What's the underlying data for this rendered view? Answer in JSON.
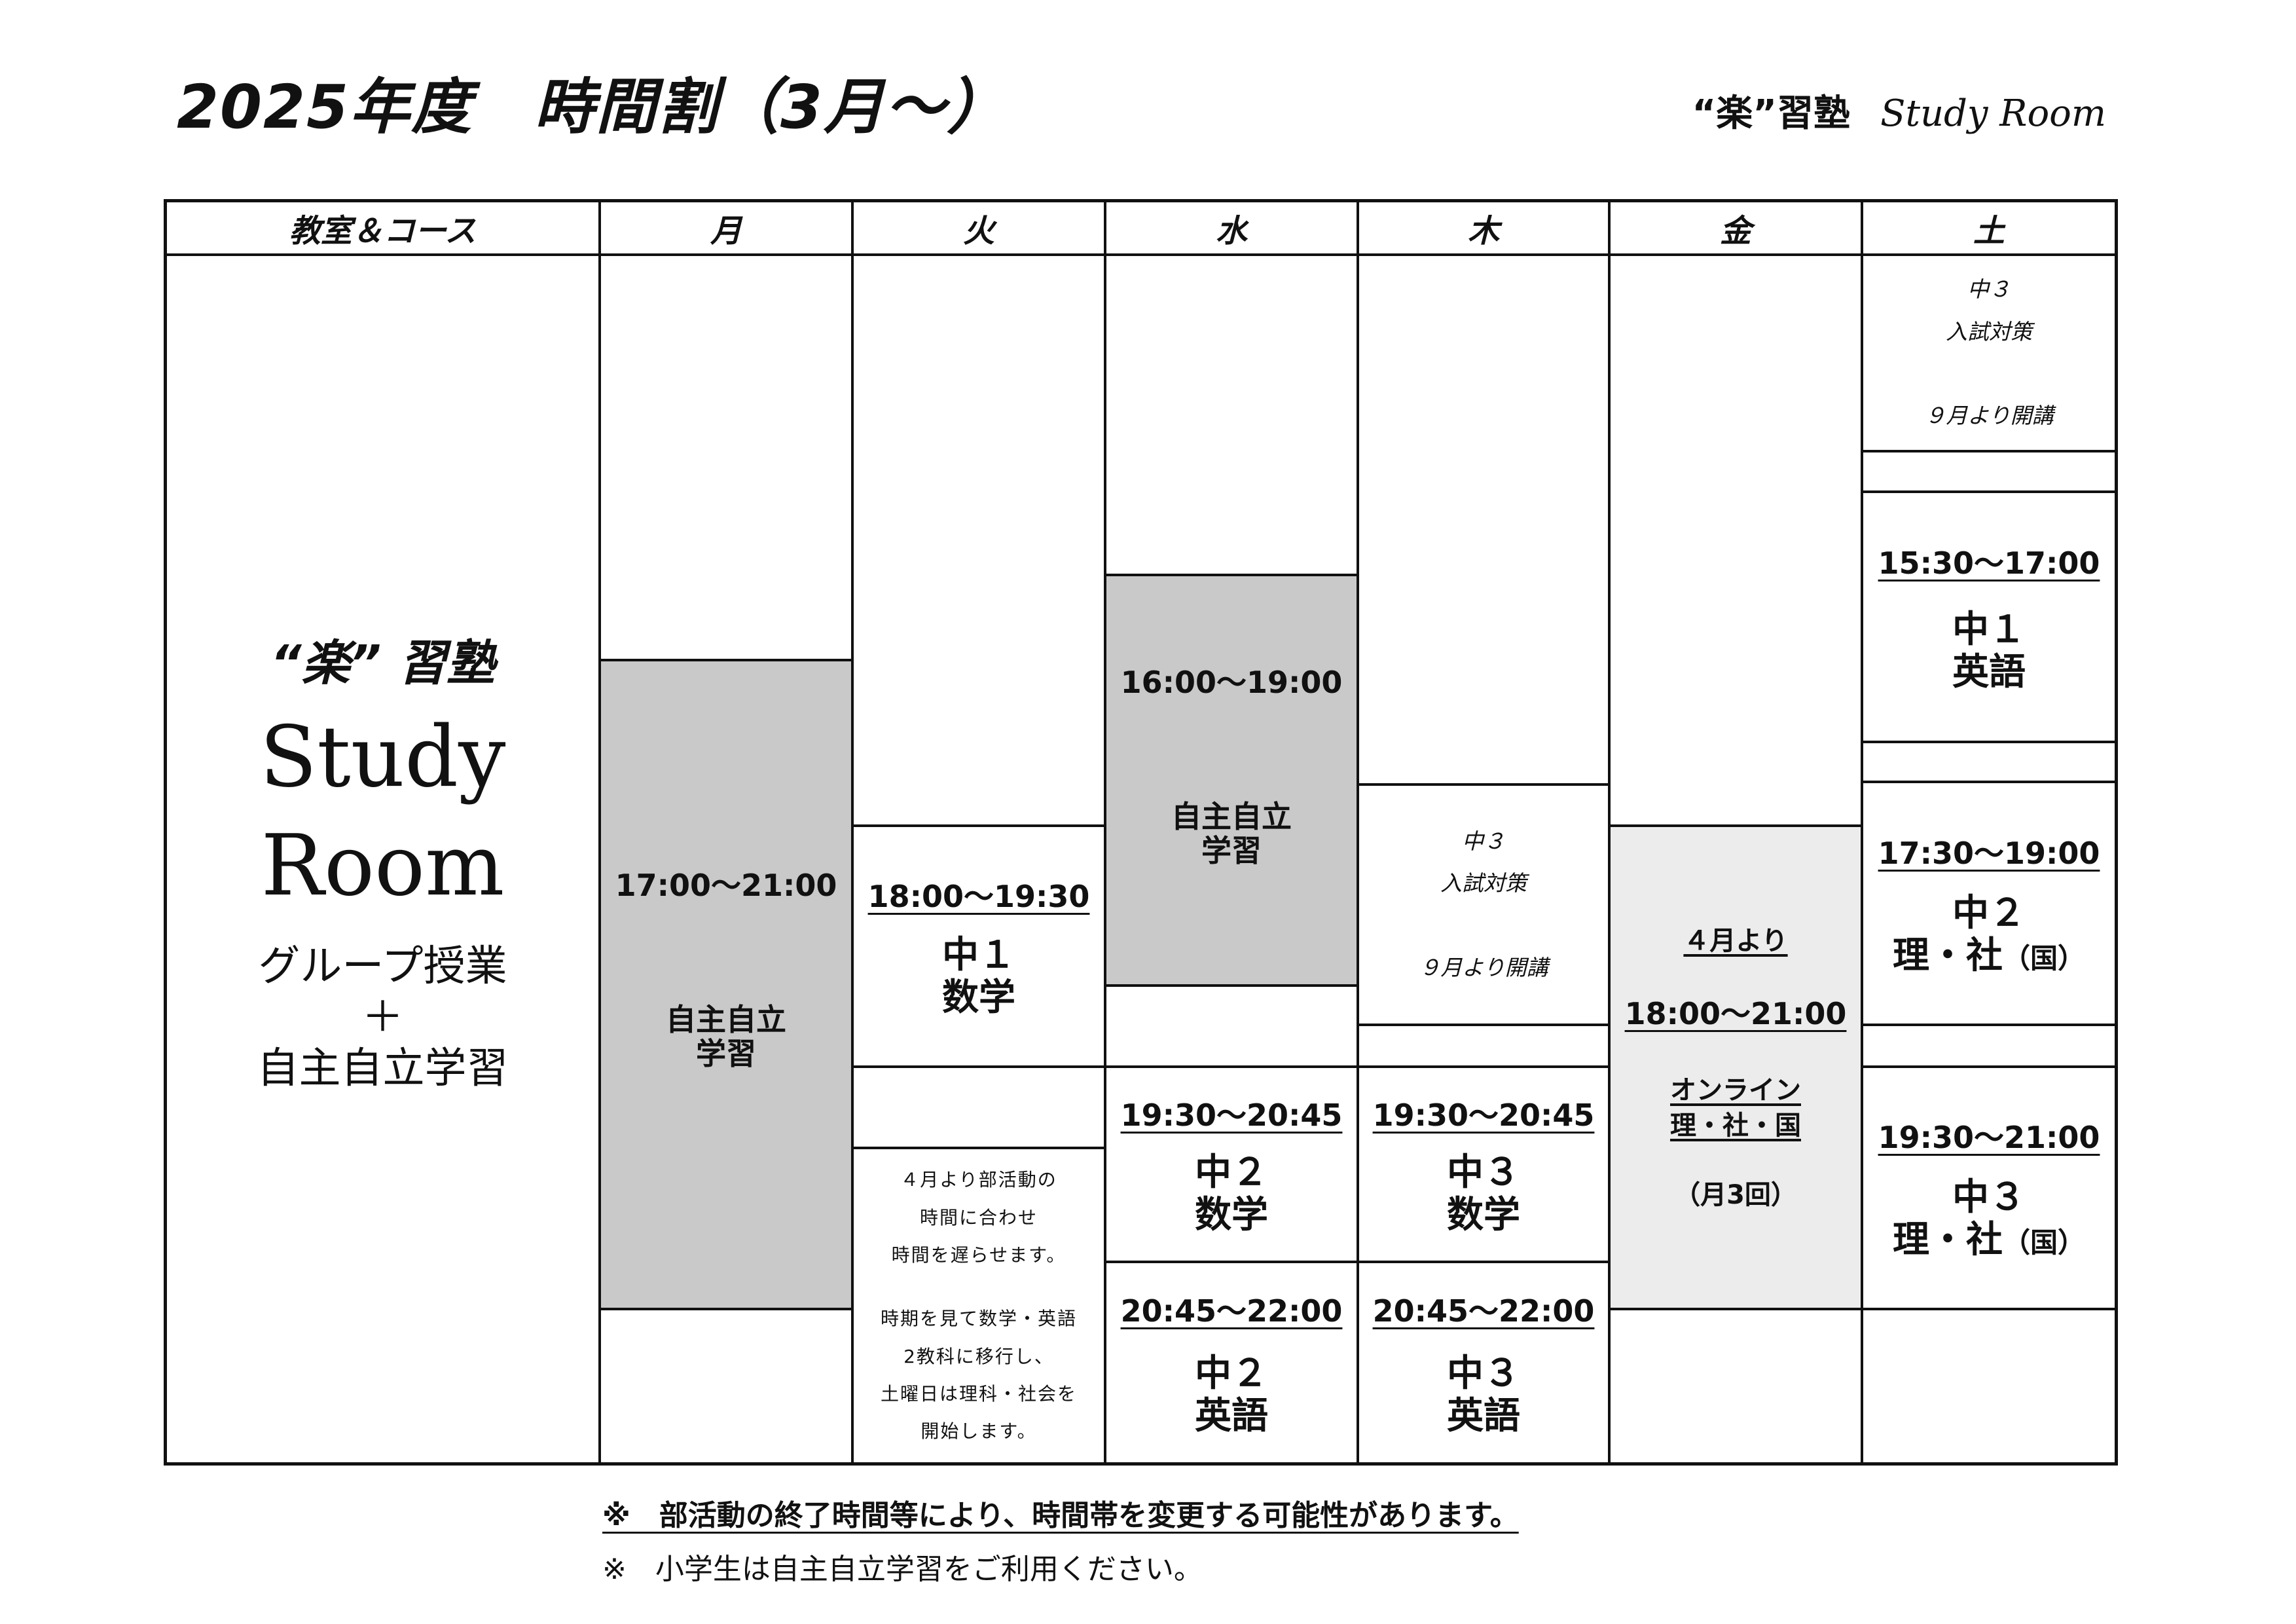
{
  "header": {
    "title": "2025年度　時間割（3月～）",
    "brand_jp": "“楽”習塾",
    "brand_en": "Study Room"
  },
  "columns": [
    "教室＆コース",
    "月",
    "火",
    "水",
    "木",
    "金",
    "土"
  ],
  "room": {
    "juku": "“楽” 習塾",
    "name_line1": "Study",
    "name_line2": "Room",
    "desc_line1": "グループ授業",
    "desc_line2": "＋",
    "desc_line3": "自主自立学習"
  },
  "mon": {
    "time": "17:00～21:00",
    "label_line1": "自主自立",
    "label_line2": "学習"
  },
  "tue": {
    "slot1": {
      "time": "18:00～19:30",
      "grade": "中１",
      "subject": "数学"
    },
    "memo": [
      "４月より部活動の",
      "時間に合わせ",
      "時間を遅らせます。",
      "",
      "時期を見て数学・英語",
      "2教科に移行し、",
      "土曜日は理科・社会を",
      "開始します。"
    ]
  },
  "wed": {
    "selfstudy": {
      "time": "16:00～19:00",
      "label_line1": "自主自立",
      "label_line2": "学習"
    },
    "slot1": {
      "time": "19:30～20:45",
      "grade": "中２",
      "subject": "数学"
    },
    "slot2": {
      "time": "20:45～22:00",
      "grade": "中２",
      "subject": "英語"
    }
  },
  "thu": {
    "exam": {
      "line1": "中３",
      "line2": "入試対策",
      "line3": "９月より開講"
    },
    "slot1": {
      "time": "19:30～20:45",
      "grade": "中３",
      "subject": "数学"
    },
    "slot2": {
      "time": "20:45～22:00",
      "grade": "中３",
      "subject": "英語"
    }
  },
  "fri": {
    "from": "４月より",
    "time": "18:00～21:00",
    "online_line1": "オンライン",
    "online_line2": "理・社・国",
    "count": "（月3回）"
  },
  "sat": {
    "exam": {
      "line1": "中３",
      "line2": "入試対策",
      "line3": "９月より開講"
    },
    "slot1": {
      "time": "15:30～17:00",
      "grade": "中１",
      "subject": "英語"
    },
    "slot2": {
      "time": "17:30～19:00",
      "grade": "中２",
      "subject": "理・社",
      "extra": "（国）"
    },
    "slot3": {
      "time": "19:30～21:00",
      "grade": "中３",
      "subject": "理・社",
      "extra": "（国）"
    }
  },
  "footer": {
    "note1": "※　部活動の終了時間等により、時間帯を変更する可能性があります。",
    "note2": "※　小学生は自主自立学習をご利用ください。"
  }
}
